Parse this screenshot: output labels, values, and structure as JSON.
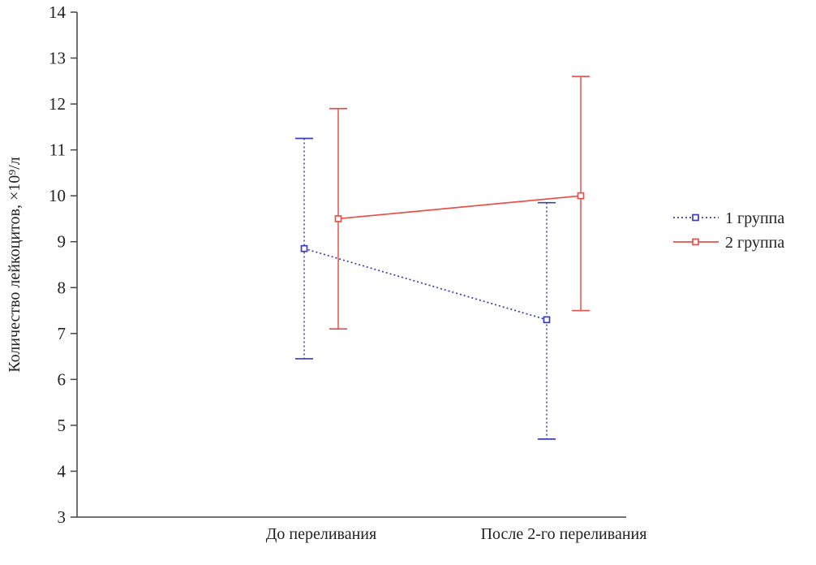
{
  "chart_data": {
    "type": "line",
    "categories": [
      "До переливания",
      "После 2-го переливания"
    ],
    "series": [
      {
        "name": "1 группа",
        "color": "#3c3cbe",
        "style": "dotted",
        "marker": "square",
        "values": [
          8.85,
          7.3
        ],
        "error_low": [
          6.45,
          4.7
        ],
        "error_high": [
          11.25,
          9.85
        ]
      },
      {
        "name": "2 группа",
        "color": "#e8504a",
        "style": "solid",
        "marker": "square",
        "values": [
          9.5,
          10.0
        ],
        "error_low": [
          7.1,
          7.5
        ],
        "error_high": [
          11.9,
          12.6
        ]
      }
    ],
    "title": "",
    "xlabel": "",
    "ylabel": "Количество лейкоцитов, ×10⁹/л",
    "ylim": [
      3,
      14
    ],
    "ytick_step": 1,
    "grid": false,
    "legend_position": "right"
  },
  "colors": {
    "axis": "#444444",
    "text": "#222222",
    "background": "#ffffff"
  }
}
